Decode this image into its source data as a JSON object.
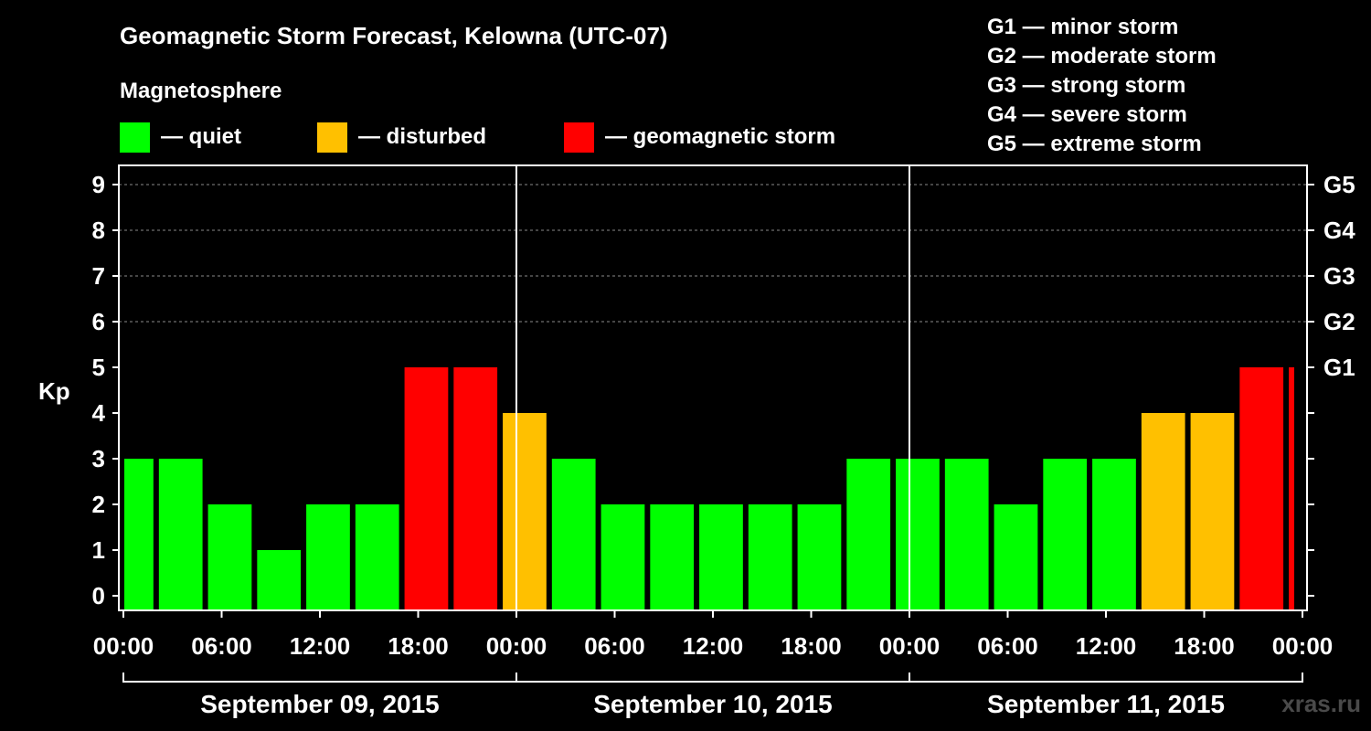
{
  "header": {
    "title": "Geomagnetic Storm Forecast, Kelowna (UTC-07)",
    "subtitle": "Magnetosphere"
  },
  "legend": [
    {
      "label": "— quiet",
      "color": "#00ff00"
    },
    {
      "label": "— disturbed",
      "color": "#ffc000"
    },
    {
      "label": "— geomagnetic storm",
      "color": "#ff0000"
    }
  ],
  "storm_scale": [
    "G1 — minor storm",
    "G2 — moderate storm",
    "G3 — strong storm",
    "G4 — severe storm",
    "G5 — extreme storm"
  ],
  "watermark": "xras.ru",
  "chart_data": {
    "type": "bar",
    "ylabel": "Kp",
    "ylim": [
      0,
      9
    ],
    "yticks": [
      "0",
      "1",
      "2",
      "3",
      "4",
      "5",
      "6",
      "7",
      "8",
      "9"
    ],
    "right_ticks": [
      {
        "kp": 5,
        "label": "G1"
      },
      {
        "kp": 6,
        "label": "G2"
      },
      {
        "kp": 7,
        "label": "G3"
      },
      {
        "kp": 8,
        "label": "G4"
      },
      {
        "kp": 9,
        "label": "G5"
      }
    ],
    "xtick_labels": [
      "00:00",
      "06:00",
      "12:00",
      "18:00",
      "00:00",
      "06:00",
      "12:00",
      "18:00",
      "00:00",
      "06:00",
      "12:00",
      "18:00",
      "00:00"
    ],
    "days": [
      "September 09, 2015",
      "September 10, 2015",
      "September 11, 2015"
    ],
    "bar_hours": 3,
    "first_bar_start_hour": -1,
    "grid": "dashed horizontal at Kp 6-9",
    "colors": {
      "quiet": "#00ff00",
      "disturbed": "#ffc000",
      "storm": "#ff0000"
    },
    "values": [
      3,
      3,
      2,
      1,
      2,
      2,
      5,
      5,
      4,
      3,
      2,
      2,
      2,
      2,
      2,
      3,
      3,
      3,
      2,
      3,
      3,
      4,
      4,
      5,
      5
    ]
  }
}
